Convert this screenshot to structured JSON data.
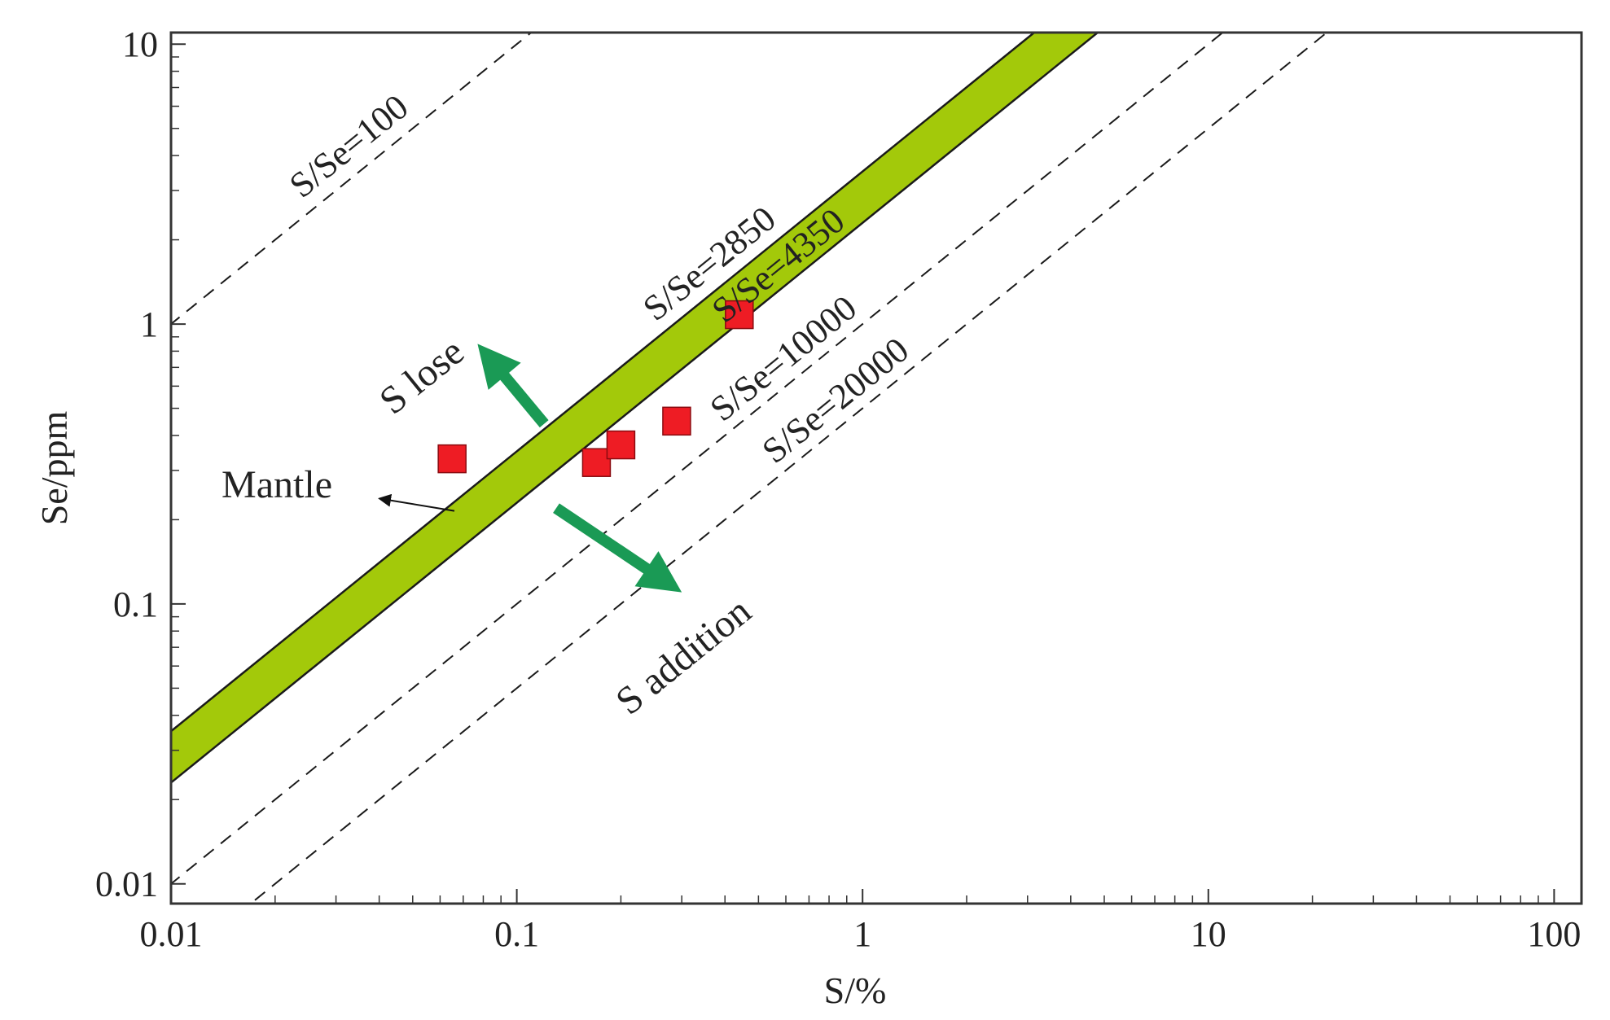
{
  "chart_data": {
    "type": "scatter",
    "xlabel": "S/%",
    "ylabel": "Se/ppm",
    "x_scale": "log",
    "y_scale": "log",
    "xlim": [
      0.01,
      120
    ],
    "ylim": [
      0.0085,
      11
    ],
    "x_ticks": [
      {
        "value": 0.01,
        "label": "0.01"
      },
      {
        "value": 0.1,
        "label": "0.1"
      },
      {
        "value": 1,
        "label": "1"
      },
      {
        "value": 10,
        "label": "10"
      },
      {
        "value": 100,
        "label": "100"
      }
    ],
    "y_ticks": [
      {
        "value": 0.01,
        "label": "0.01"
      },
      {
        "value": 0.1,
        "label": "0.1"
      },
      {
        "value": 1,
        "label": "1"
      },
      {
        "value": 10,
        "label": "10"
      }
    ],
    "grid": false,
    "points": [
      {
        "x": 0.065,
        "y": 0.33
      },
      {
        "x": 0.17,
        "y": 0.32
      },
      {
        "x": 0.2,
        "y": 0.37
      },
      {
        "x": 0.29,
        "y": 0.45
      },
      {
        "x": 0.44,
        "y": 1.08
      }
    ],
    "marker_color": "#ee1c24",
    "reference_lines": [
      {
        "ratio": 100,
        "label": "S/Se=100",
        "style": "dashed"
      },
      {
        "ratio": 2850,
        "label": "S/Se=2850",
        "style": "solid"
      },
      {
        "ratio": 4350,
        "label": "S/Se=4350",
        "style": "solid"
      },
      {
        "ratio": 10000,
        "label": "S/Se=10000",
        "style": "dashed"
      },
      {
        "ratio": 20000,
        "label": "S/Se=20000",
        "style": "dashed"
      }
    ],
    "band": {
      "from_ratio": 2850,
      "to_ratio": 4350,
      "color": "#a3c90a"
    },
    "annotations": {
      "mantle": "Mantle",
      "s_lose": "S lose",
      "s_addition": "S addition"
    },
    "arrow_color": "#1a9a55"
  }
}
